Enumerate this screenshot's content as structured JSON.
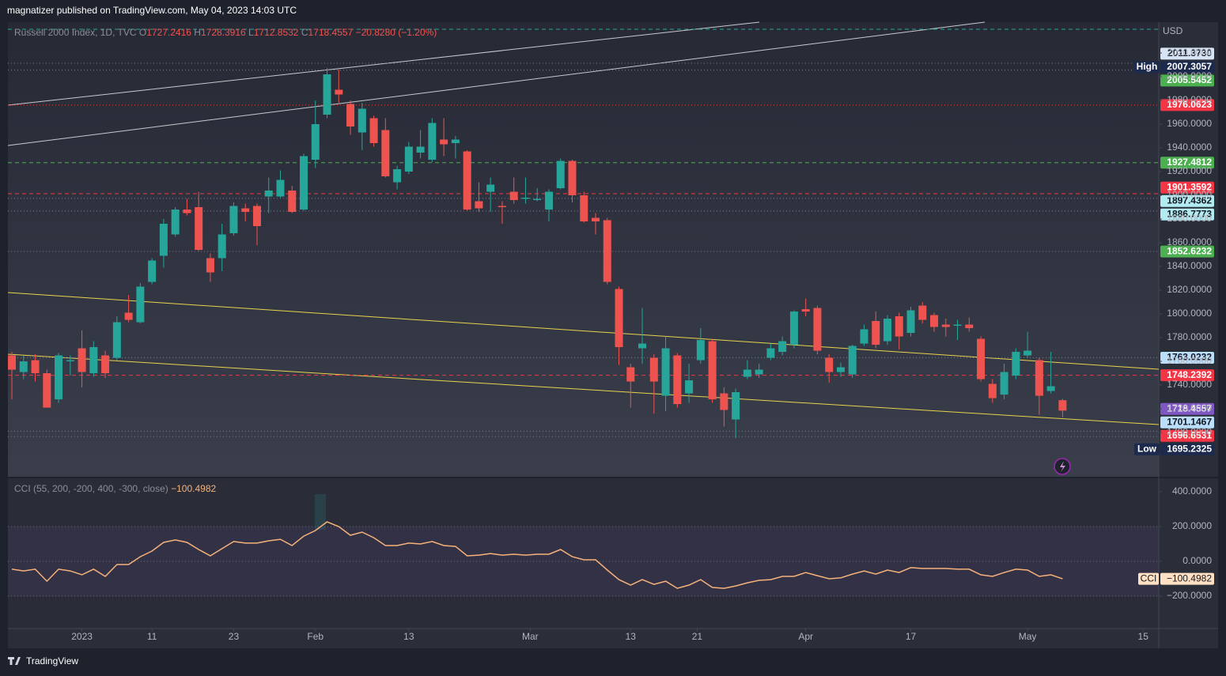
{
  "header": {
    "text": "magnatizer published on TradingView.com, May 04, 2023 14:03 UTC"
  },
  "footer": {
    "logo": "TradingView"
  },
  "chart_data": [
    {
      "type": "candlestick",
      "legend": {
        "symbol": "Russell 2000 Index, 1D, TVC",
        "labels": [
          "O",
          "H",
          "L",
          "C"
        ],
        "change": "−20.8280 (−1.20%)"
      },
      "currency": "USD",
      "up_color": "#26a69a",
      "down_color": "#ef5350",
      "last_color": "#7e57c2",
      "extreme_color": "#1c2a4e",
      "high_tag": "High",
      "low_tag": "Low",
      "open": [
        1765,
        1751,
        1761,
        1750,
        1728,
        1760,
        1771,
        1750,
        1765,
        1763,
        1801,
        1793,
        1827,
        1849,
        1867,
        1888,
        1890,
        1847,
        1847,
        1868,
        1889,
        1891,
        1899,
        1899,
        1904,
        1888,
        1930,
        1968,
        1989,
        1977,
        1953,
        1965,
        1955,
        1911,
        1920,
        1936,
        1930,
        1947,
        1944,
        1937,
        1895,
        1903,
        1891,
        1903,
        1897,
        1896,
        1888,
        1906,
        1929,
        1900,
        1881,
        1879,
        1821,
        1755,
        1771,
        1763,
        1731,
        1765,
        1733,
        1761,
        1777,
        1733,
        1711,
        1747,
        1749,
        1763,
        1768,
        1774,
        1804,
        1805,
        1763,
        1751,
        1749,
        1775,
        1794,
        1777,
        1798,
        1784,
        1807,
        1799,
        1791,
        1790,
        1791,
        1779,
        1741,
        1732,
        1748,
        1765,
        1761,
        1735,
        1727.2416
      ],
      "high": [
        1768,
        1765,
        1766,
        1753,
        1767,
        1765,
        1786,
        1777,
        1769,
        1798,
        1816,
        1826,
        1847,
        1880,
        1890,
        1897,
        1903,
        1851,
        1876,
        1894,
        1893,
        1893,
        1915,
        1921,
        1908,
        1935,
        1980,
        2007.3057,
        2006,
        1980,
        1978,
        1967,
        1965,
        1925,
        1945,
        1955,
        1965,
        1965,
        1950,
        1938,
        1911,
        1915,
        1895,
        1915,
        1915,
        1906,
        1905,
        1931,
        1930,
        1903,
        1885,
        1881,
        1823,
        1758,
        1805,
        1766,
        1781,
        1767,
        1758,
        1788,
        1779,
        1738,
        1737,
        1761,
        1758,
        1775,
        1781,
        1803,
        1813,
        1807,
        1766,
        1759,
        1774,
        1791,
        1802,
        1799,
        1801,
        1806,
        1810,
        1801,
        1796,
        1795,
        1797,
        1781,
        1745,
        1758,
        1771,
        1785,
        1763,
        1768,
        1728.3916
      ],
      "low": [
        1728,
        1745,
        1743,
        1721,
        1725,
        1748,
        1738,
        1747,
        1746,
        1761,
        1793,
        1792,
        1825,
        1839,
        1865,
        1883,
        1853,
        1827,
        1836,
        1866,
        1878,
        1858,
        1885,
        1898,
        1885,
        1887,
        1923,
        1965,
        1978,
        1951,
        1938,
        1941,
        1915,
        1905,
        1918,
        1931,
        1928,
        1933,
        1931,
        1887,
        1886,
        1886,
        1876,
        1893,
        1893,
        1895,
        1878,
        1905,
        1894,
        1877,
        1867,
        1825,
        1757,
        1721,
        1758,
        1716,
        1718,
        1721,
        1725,
        1758,
        1725,
        1705,
        1695.2325,
        1745,
        1746,
        1761,
        1765,
        1771,
        1798,
        1766,
        1742,
        1747,
        1746,
        1773,
        1771,
        1774,
        1770,
        1781,
        1792,
        1785,
        1781,
        1778,
        1785,
        1743,
        1725,
        1728,
        1745,
        1763,
        1715,
        1733,
        1712.8532
      ],
      "close": [
        1753,
        1760,
        1750,
        1721,
        1765,
        1761,
        1751,
        1772,
        1750,
        1793,
        1795,
        1823,
        1845,
        1876,
        1888,
        1885,
        1854,
        1835,
        1867,
        1891,
        1886,
        1874,
        1904,
        1913,
        1886,
        1933,
        1960,
        2002,
        1985,
        1958,
        1973,
        1944,
        1916,
        1922,
        1941,
        1941,
        1961,
        1943,
        1947,
        1888,
        1889,
        1909,
        1890,
        1896,
        1898,
        1897,
        1903,
        1929,
        1900,
        1878,
        1878,
        1827,
        1772,
        1743,
        1775,
        1743,
        1771,
        1724,
        1744,
        1778,
        1728,
        1719,
        1734,
        1753,
        1753,
        1771,
        1777,
        1802,
        1802,
        1769,
        1751,
        1755,
        1773,
        1787,
        1774,
        1796,
        1781,
        1803,
        1795,
        1789,
        1789,
        1791,
        1788,
        1745,
        1729,
        1751,
        1768,
        1769,
        1731,
        1739,
        1718.4557
      ],
      "xlim": [
        -0.34,
        98.24
      ],
      "xticks": [
        {
          "value": 6,
          "label": "2023"
        },
        {
          "value": 12,
          "label": "11"
        },
        {
          "value": 19,
          "label": "23"
        },
        {
          "value": 26,
          "label": "Feb"
        },
        {
          "value": 34,
          "label": "13"
        },
        {
          "value": 44.4,
          "label": "Mar"
        },
        {
          "value": 53,
          "label": "13"
        },
        {
          "value": 58.7,
          "label": "21"
        },
        {
          "value": 68,
          "label": "Apr"
        },
        {
          "value": 77,
          "label": "17"
        },
        {
          "value": 87,
          "label": "May"
        },
        {
          "value": 96.9,
          "label": "15"
        }
      ],
      "ylim": [
        1662.7,
        2046
      ],
      "yticks": [
        {
          "value": 1700,
          "label": "1700.0000"
        },
        {
          "value": 1720,
          "label": "1720.0000"
        },
        {
          "value": 1740,
          "label": "1740.0000"
        },
        {
          "value": 1760,
          "label": "1760.0000"
        },
        {
          "value": 1780,
          "label": "1780.0000"
        },
        {
          "value": 1800,
          "label": "1800.0000"
        },
        {
          "value": 1820,
          "label": "1820.0000"
        },
        {
          "value": 1840,
          "label": "1840.0000"
        },
        {
          "value": 1860,
          "label": "1860.0000"
        },
        {
          "value": 1880,
          "label": "1880.0000"
        },
        {
          "value": 1900,
          "label": "1900.0000"
        },
        {
          "value": 1920,
          "label": "1920.0000"
        },
        {
          "value": 1940,
          "label": "1940.0000"
        },
        {
          "value": 1960,
          "label": "1960.0000"
        },
        {
          "value": 1980,
          "label": "1980.0000"
        },
        {
          "value": 2000,
          "label": "2000.0000"
        },
        {
          "value": 2020,
          "label": "2020.0000"
        }
      ],
      "grid": false,
      "levels": [
        {
          "value": 2011.373,
          "label": "2011.3730",
          "color": "#d6e4f5",
          "line_color": "#787b86",
          "line": "dotted"
        },
        {
          "value": 2005.5452,
          "label": "2005.5452",
          "color": "#4caf50",
          "line_color": "#787b86",
          "line": "dotted"
        },
        {
          "value": 1976.0623,
          "label": "1976.0623",
          "color": "#f23645",
          "line_color": "#f23645",
          "line": "dotted"
        },
        {
          "value": 1927.4812,
          "label": "1927.4812",
          "color": "#4caf50",
          "line_color": "#4caf50",
          "line": "dashed"
        },
        {
          "value": 1901.3592,
          "label": "1901.3592",
          "color": "#f23645",
          "line_color": "#f23645",
          "line": "dashed"
        },
        {
          "value": 1897.4362,
          "label": "1897.4362",
          "color": "#b2ebf2",
          "line_color": "#787b86",
          "line": "dotted"
        },
        {
          "value": 1886.7773,
          "label": "1886.7773",
          "color": "#b2ebf2",
          "line_color": "#787b86",
          "line": "dotted"
        },
        {
          "value": 1852.6232,
          "label": "1852.6232",
          "color": "#4caf50",
          "line_color": "#787b86",
          "line": "dotted"
        },
        {
          "value": 1763.0232,
          "label": "1763.0232",
          "color": "#bbdefb",
          "line_color": "#787b86",
          "line": "dotted"
        },
        {
          "value": 1748.2392,
          "label": "1748.2392",
          "color": "#f23645",
          "line_color": "#f23645",
          "line": "dashed"
        },
        {
          "value": 1701.1467,
          "label": "1701.1467",
          "color": "#bbdefb",
          "line_color": "#787b86",
          "line": "dotted"
        },
        {
          "value": 1696.6531,
          "label": "1696.6531",
          "color": "#f23645",
          "line_color": "#787b86",
          "line": "dotted"
        }
      ]
    },
    {
      "type": "line",
      "legend": {
        "name": "CCI (55, 200, -200, 400, -300, close)"
      },
      "tag": "CCI",
      "color": "#f7b27a",
      "tag_color": "#ffe0c2",
      "values": [
        -45,
        -55,
        -45,
        -114,
        -45,
        -55,
        -77,
        -45,
        -86,
        -18,
        -18,
        27,
        59,
        109,
        123,
        109,
        68,
        32,
        73,
        114,
        105,
        105,
        118,
        127,
        91,
        145,
        177,
        227,
        200,
        150,
        168,
        136,
        91,
        91,
        105,
        100,
        114,
        91,
        86,
        32,
        36,
        45,
        36,
        41,
        36,
        41,
        41,
        68,
        27,
        9,
        9,
        -50,
        -105,
        -136,
        -105,
        -132,
        -114,
        -155,
        -136,
        -105,
        -150,
        -155,
        -141,
        -123,
        -109,
        -105,
        -86,
        -86,
        -64,
        -82,
        -100,
        -95,
        -73,
        -55,
        -73,
        -50,
        -64,
        -36,
        -41,
        -41,
        -41,
        -45,
        -45,
        -77,
        -86,
        -64,
        -45,
        -50,
        -86,
        -77,
        -100.4982
      ],
      "value_label": "−100.4982",
      "ylim": [
        -386,
        477
      ],
      "yticks": [
        {
          "value": 400,
          "label": "400.0000"
        },
        {
          "value": 200,
          "label": "200.0000"
        },
        {
          "value": 0,
          "label": "0.0000"
        },
        {
          "value": -200,
          "label": "−200.0000"
        }
      ],
      "levels": [
        200,
        0,
        -200
      ],
      "band": [
        -200,
        200
      ],
      "band_color": "#7e57c2"
    }
  ]
}
